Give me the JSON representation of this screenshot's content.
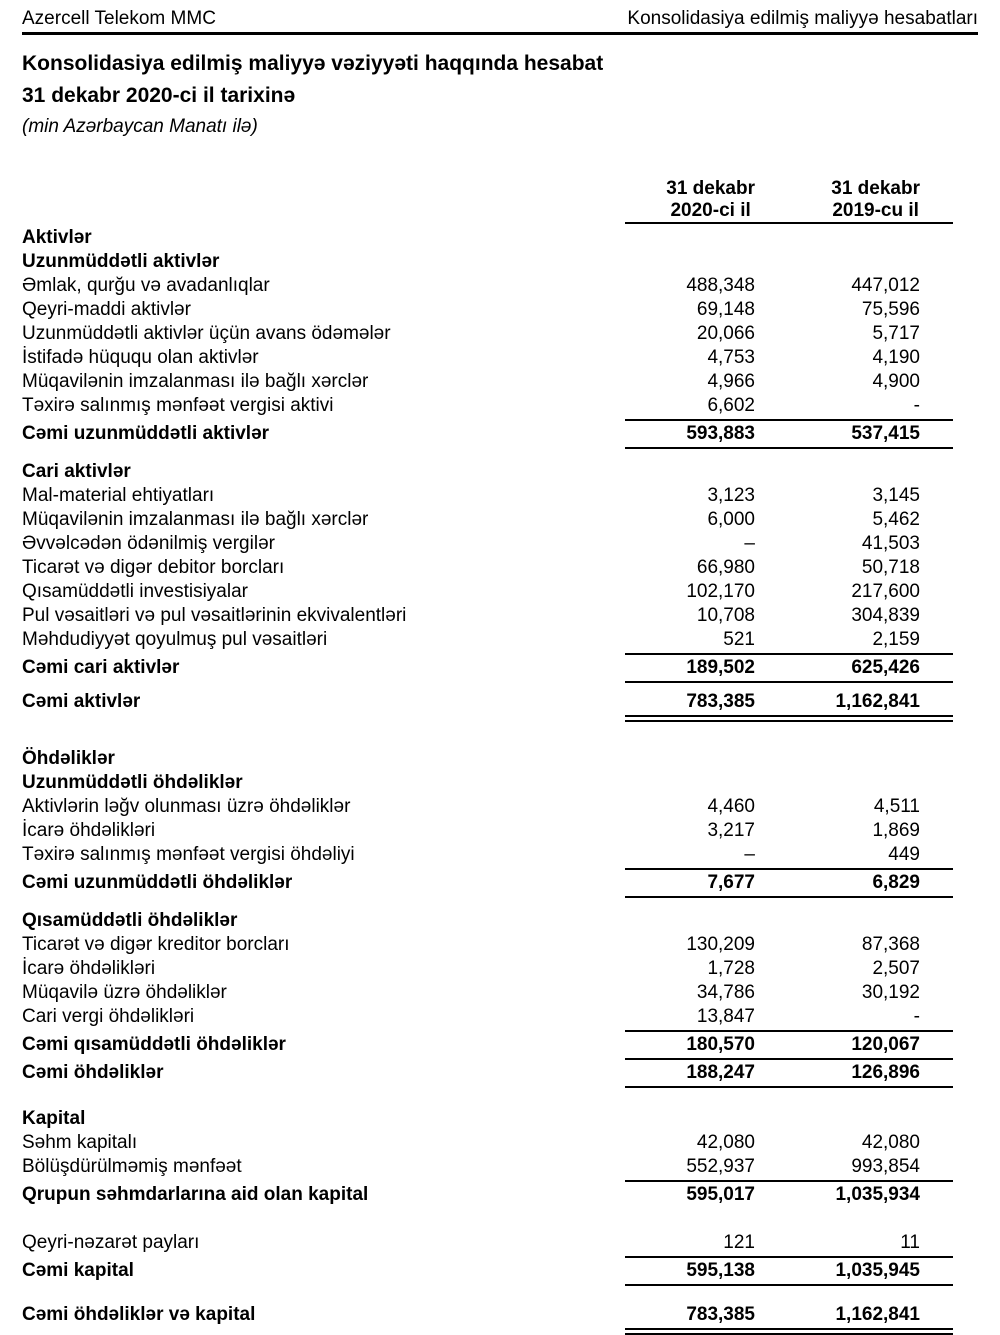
{
  "page_header": {
    "left": "Azercell Telekom MMC",
    "right": "Konsolidasiya edilmiş maliyyə hesabatları"
  },
  "report": {
    "title": "Konsolidasiya edilmiş maliyyə vəziyyəti haqqında hesabat",
    "date_line": "31 dekabr 2020-ci il tarixinə",
    "currency_note": "(min Azərbaycan Manatı ilə)"
  },
  "columns": [
    {
      "line1": "31 dekabr",
      "line2": "2020-ci il"
    },
    {
      "line1": "31 dekabr",
      "line2": "2019-cu il"
    }
  ],
  "rows": [
    {
      "type": "section",
      "label": "Aktivlər"
    },
    {
      "type": "section",
      "label": "Uzunmüddətli aktivlər"
    },
    {
      "type": "item",
      "label": "Əmlak, qurğu və avadanlıqlar",
      "v1": "488,348",
      "v2": "447,012"
    },
    {
      "type": "item",
      "label": "Qeyri-maddi aktivlər",
      "v1": "69,148",
      "v2": "75,596"
    },
    {
      "type": "item",
      "label": "Uzunmüddətli aktivlər üçün avans ödəmələr",
      "v1": "20,066",
      "v2": "5,717"
    },
    {
      "type": "item",
      "label": "İstifadə hüququ olan aktivlər",
      "v1": "4,753",
      "v2": "4,190"
    },
    {
      "type": "item",
      "label": "Müqavilənin imzalanması ilə bağlı xərclər",
      "v1": "4,966",
      "v2": "4,900"
    },
    {
      "type": "item",
      "label": "Təxirə salınmış mənfəət vergisi aktivi",
      "v1": "6,602",
      "v2": "-",
      "rule_below": "single"
    },
    {
      "type": "total",
      "label": "Cəmi uzunmüddətli aktivlər",
      "v1": "593,883",
      "v2": "537,415",
      "rule_below": "single"
    },
    {
      "type": "spacer",
      "size": "sm"
    },
    {
      "type": "section",
      "label": "Cari aktivlər"
    },
    {
      "type": "item",
      "label": "Mal-material ehtiyatları",
      "v1": "3,123",
      "v2": "3,145"
    },
    {
      "type": "item",
      "label": "Müqavilənin imzalanması ilə bağlı xərclər",
      "v1": "6,000",
      "v2": "5,462"
    },
    {
      "type": "item",
      "label": "Əvvəlcədən ödənilmiş vergilər",
      "v1": "–",
      "v2": "41,503"
    },
    {
      "type": "item",
      "label": "Ticarət və digər debitor borcları",
      "v1": "66,980",
      "v2": "50,718"
    },
    {
      "type": "item",
      "label": "Qısamüddətli investisiyalar",
      "v1": "102,170",
      "v2": "217,600"
    },
    {
      "type": "item",
      "label": "Pul vəsaitləri və pul vəsaitlərinin ekvivalentləri",
      "v1": "10,708",
      "v2": "304,839"
    },
    {
      "type": "item",
      "label": "Məhdudiyyət qoyulmuş pul vəsaitləri",
      "v1": "521",
      "v2": "2,159",
      "rule_below": "single"
    },
    {
      "type": "total",
      "label": "Cəmi cari aktivlər",
      "v1": "189,502",
      "v2": "625,426",
      "rule_below": "single"
    },
    {
      "type": "spacer",
      "size": "xs"
    },
    {
      "type": "total",
      "label": "Cəmi aktivlər",
      "v1": "783,385",
      "v2": "1,162,841",
      "rule_below": "double"
    },
    {
      "type": "spacer",
      "size": "xl"
    },
    {
      "type": "section",
      "label": "Öhdəliklər"
    },
    {
      "type": "section",
      "label": "Uzunmüddətli öhdəliklər"
    },
    {
      "type": "item",
      "label": "Aktivlərin ləğv olunması üzrə öhdəliklər",
      "v1": "4,460",
      "v2": "4,511"
    },
    {
      "type": "item",
      "label": "İcarə öhdəlikləri",
      "v1": "3,217",
      "v2": "1,869"
    },
    {
      "type": "item",
      "label": "Təxirə salınmış mənfəət vergisi öhdəliyi",
      "v1": "–",
      "v2": "449",
      "rule_below": "single"
    },
    {
      "type": "total",
      "label": "Cəmi uzunmüddətli öhdəliklər",
      "v1": "7,677",
      "v2": "6,829",
      "rule_below": "single"
    },
    {
      "type": "spacer",
      "size": "sm"
    },
    {
      "type": "section",
      "label": "Qısamüddətli öhdəliklər"
    },
    {
      "type": "item",
      "label": "Ticarət və digər kreditor borcları",
      "v1": "130,209",
      "v2": "87,368"
    },
    {
      "type": "item",
      "label": "İcarə öhdəlikləri",
      "v1": "1,728",
      "v2": "2,507"
    },
    {
      "type": "item",
      "label": "Müqavilə üzrə öhdəliklər",
      "v1": "34,786",
      "v2": "30,192"
    },
    {
      "type": "item",
      "label": "Cari vergi öhdəlikləri",
      "v1": "13,847",
      "v2": "-",
      "rule_below": "single"
    },
    {
      "type": "total",
      "label": "Cəmi qısamüddətli öhdəliklər",
      "v1": "180,570",
      "v2": "120,067",
      "rule_below": "single"
    },
    {
      "type": "total",
      "label": "Cəmi öhdəliklər",
      "v1": "188,247",
      "v2": "126,896",
      "rule_below": "single"
    },
    {
      "type": "spacer",
      "size": "lg"
    },
    {
      "type": "section",
      "label": "Kapital"
    },
    {
      "type": "item",
      "label": "Səhm kapitalı",
      "v1": "42,080",
      "v2": "42,080"
    },
    {
      "type": "item",
      "label": "Bölüşdürülməmiş mənfəət",
      "v1": "552,937",
      "v2": "993,854",
      "rule_below": "single"
    },
    {
      "type": "total",
      "label": "Qrupun səhmdarlarına aid olan kapital",
      "v1": "595,017",
      "v2": "1,035,934"
    },
    {
      "type": "spacer",
      "size": "xl"
    },
    {
      "type": "item",
      "label": "Qeyri-nəzarət payları",
      "v1": "121",
      "v2": "11",
      "rule_below": "single"
    },
    {
      "type": "total",
      "label": "Cəmi kapital",
      "v1": "595,138",
      "v2": "1,035,945",
      "rule_below": "single"
    },
    {
      "type": "spacer",
      "size": "md"
    },
    {
      "type": "total",
      "label": "Cəmi öhdəliklər və kapital",
      "v1": "783,385",
      "v2": "1,162,841",
      "rule_below": "double"
    }
  ]
}
